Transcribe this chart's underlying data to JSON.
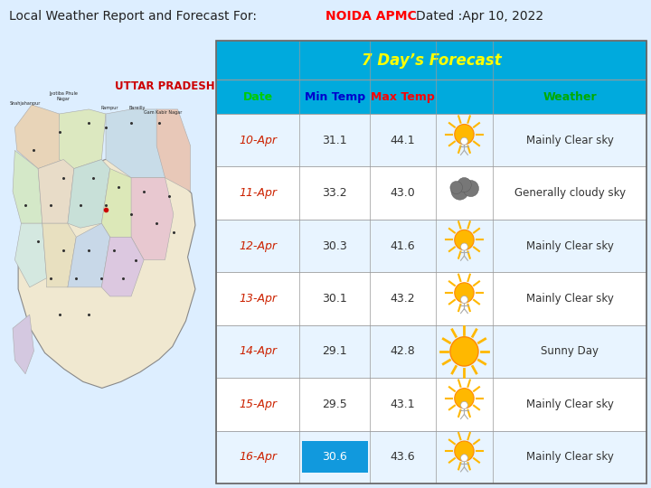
{
  "title_left": "Local Weather Report and Forecast For: ",
  "title_highlight": "NOIDA APMC",
  "title_right": "   Dated :Apr 10, 2022",
  "forecast_header": "7 Day’s Forecast",
  "col_headers": [
    "Date",
    "Min Temp",
    "Max Temp",
    "",
    "Weather"
  ],
  "col_header_colors": [
    "#00cc00",
    "#0000cc",
    "#ff0000",
    "",
    "#00aa00"
  ],
  "rows": [
    {
      "date": "10-Apr",
      "min_temp": "31.1",
      "max_temp": "44.1",
      "icon": "sunny_clear",
      "weather": "Mainly Clear sky"
    },
    {
      "date": "11-Apr",
      "min_temp": "33.2",
      "max_temp": "43.0",
      "icon": "cloudy",
      "weather": "Generally cloudy sky"
    },
    {
      "date": "12-Apr",
      "min_temp": "30.3",
      "max_temp": "41.6",
      "icon": "sunny_clear",
      "weather": "Mainly Clear sky"
    },
    {
      "date": "13-Apr",
      "min_temp": "30.1",
      "max_temp": "43.2",
      "icon": "sunny_clear",
      "weather": "Mainly Clear sky"
    },
    {
      "date": "14-Apr",
      "min_temp": "29.1",
      "max_temp": "42.8",
      "icon": "sunny",
      "weather": "Sunny Day"
    },
    {
      "date": "15-Apr",
      "min_temp": "29.5",
      "max_temp": "43.1",
      "icon": "sunny_clear",
      "weather": "Mainly Clear sky"
    },
    {
      "date": "16-Apr",
      "min_temp": "30.6",
      "max_temp": "43.6",
      "icon": "sunny_clear",
      "weather": "Mainly Clear sky",
      "min_highlight": true
    }
  ],
  "bg_color": "#ddeeff",
  "table_header_bg": "#00aadd",
  "row_bg_light": "#e8f4ff",
  "row_bg_white": "#ffffff",
  "border_color": "#999999",
  "date_color": "#cc2200",
  "temp_color": "#333333",
  "weather_color": "#333333",
  "forecast_header_color": "#ffff00",
  "col2_header_color": "#0000cc",
  "col3_header_color": "#ff0000",
  "highlight_color": "#1199dd",
  "map_bg": "#ddeeff",
  "up_label_color": "#cc0000"
}
